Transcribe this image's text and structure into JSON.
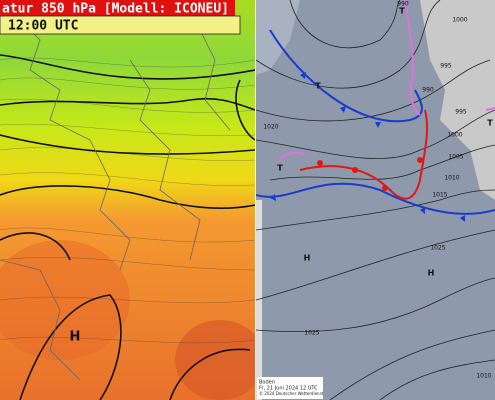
{
  "left_panel": {
    "title": "atur 850 hPa [Modell: ICONEU]",
    "time": "12:00 UTC",
    "centers": [
      "H"
    ]
  },
  "right_panel": {
    "isobars": [
      "990",
      "1000",
      "995",
      "995",
      "990",
      "1020",
      "1000",
      "1005",
      "1010",
      "1015",
      "1025",
      "1025",
      "1010"
    ],
    "centers": [
      "T",
      "T",
      "T",
      "T",
      "H",
      "H"
    ],
    "footer": [
      "Boden",
      "Fr, 21 Juni 2024 12 UTC",
      "© 2024 Deutscher Wetterdienst"
    ]
  }
}
